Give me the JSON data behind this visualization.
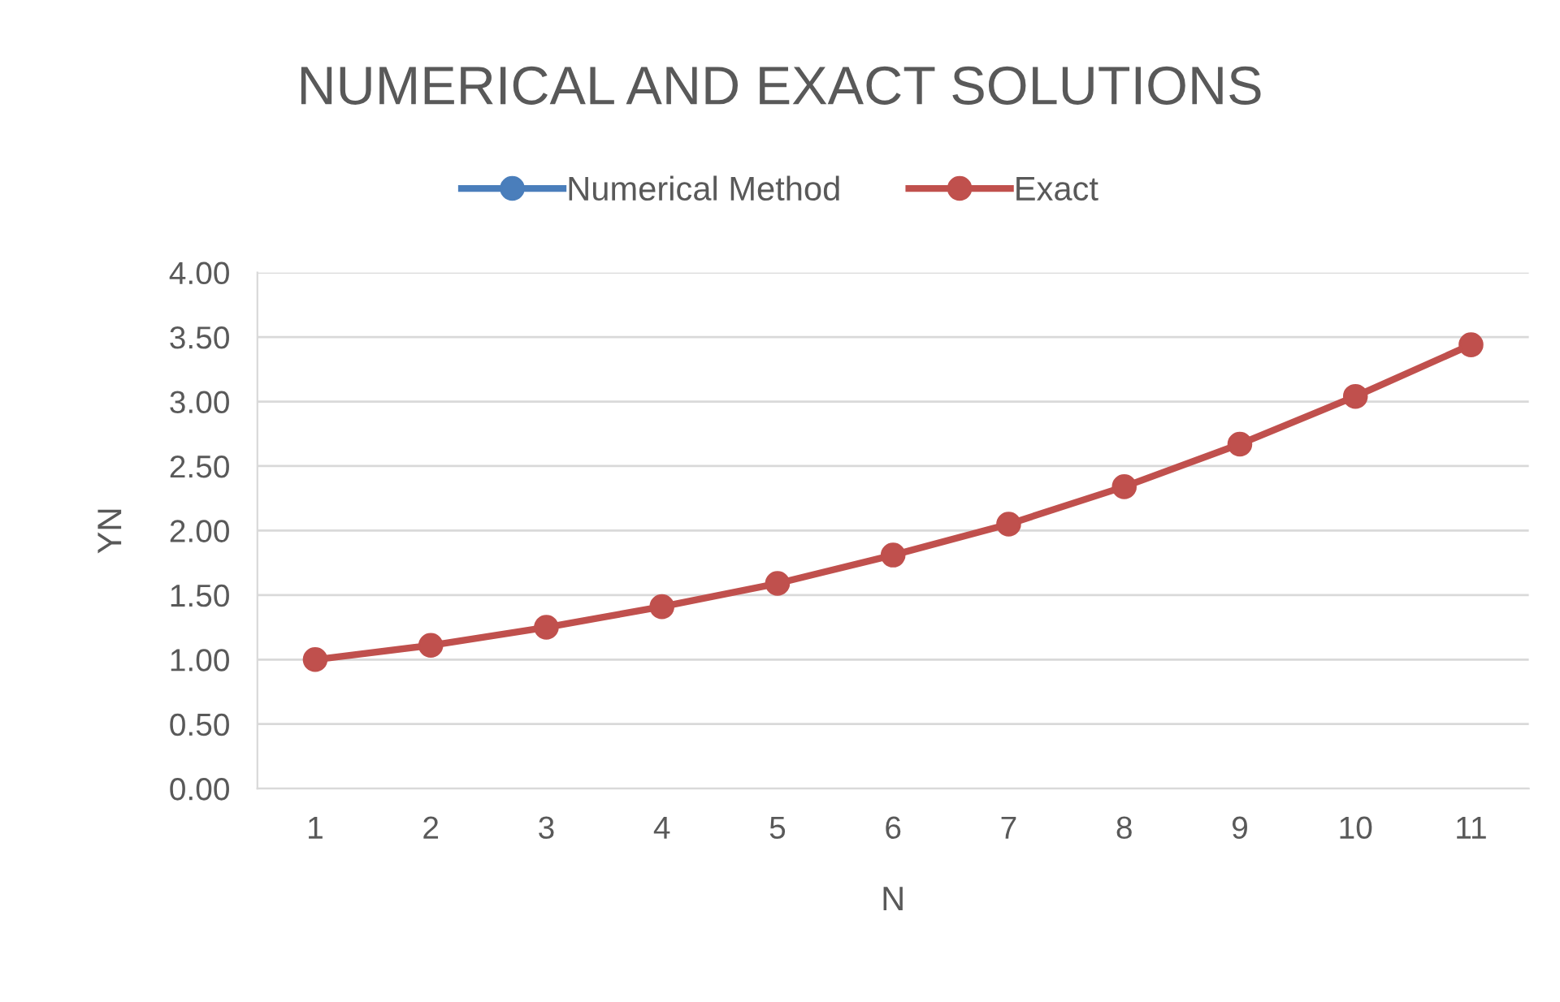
{
  "chart_data": {
    "type": "line",
    "title": "NUMERICAL AND EXACT SOLUTIONS",
    "xlabel": "N",
    "ylabel": "YN",
    "categories": [
      "1",
      "2",
      "3",
      "4",
      "5",
      "6",
      "7",
      "8",
      "9",
      "10",
      "11"
    ],
    "series": [
      {
        "name": "Numerical Method",
        "color": "#4a7ebb",
        "values": [
          null,
          null,
          null,
          null,
          null,
          null,
          null,
          null,
          null,
          null,
          null
        ]
      },
      {
        "name": "Exact",
        "color": "#c0504d",
        "values": [
          1.0,
          1.11,
          1.25,
          1.41,
          1.59,
          1.81,
          2.05,
          2.34,
          2.67,
          3.04,
          3.44
        ]
      }
    ],
    "ylim": [
      0,
      4
    ],
    "yticks": [
      {
        "value": 0,
        "label": "0.00"
      },
      {
        "value": 0.5,
        "label": "0.50"
      },
      {
        "value": 1,
        "label": "1.00"
      },
      {
        "value": 1.5,
        "label": "1.50"
      },
      {
        "value": 2,
        "label": "2.00"
      },
      {
        "value": 2.5,
        "label": "2.50"
      },
      {
        "value": 3,
        "label": "3.00"
      },
      {
        "value": 3.5,
        "label": "3.50"
      },
      {
        "value": 4,
        "label": "4.00"
      }
    ],
    "grid": "y",
    "legend": "top",
    "marker": "circle",
    "line_style": "solid"
  }
}
